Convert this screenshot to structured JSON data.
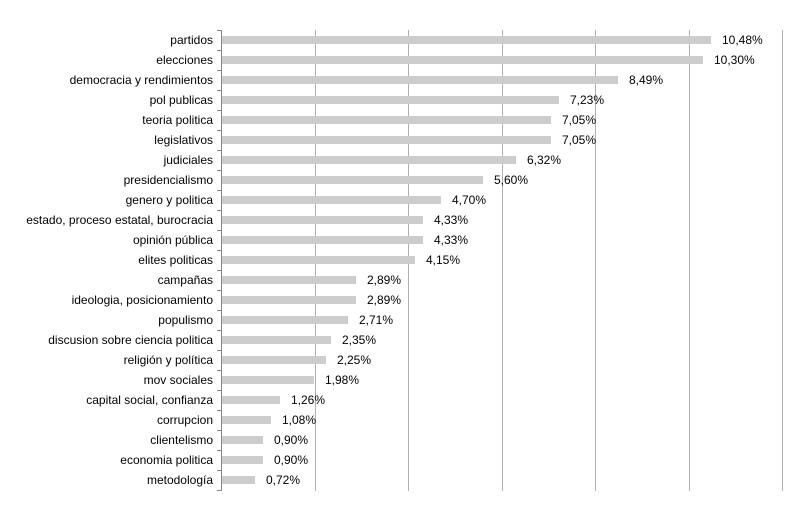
{
  "chart_data": {
    "type": "bar",
    "orientation": "horizontal",
    "title": "",
    "xlabel": "",
    "ylabel": "",
    "xlim": [
      0,
      12
    ],
    "gridline_step_pct": 2,
    "grid": true,
    "legend_position": "none",
    "x_tick_labels_visible": false,
    "categories": [
      "partidos",
      "elecciones",
      "democracia y rendimientos",
      "pol publicas",
      "teoria politica",
      "legislativos",
      "judiciales",
      "presidencialismo",
      "genero y politica",
      "estado, proceso estatal, burocracia",
      "opinión pública",
      "elites politicas",
      "campañas",
      "ideologia, posicionamiento",
      "populismo",
      "discusion sobre ciencia politica",
      "religión y política",
      "mov sociales",
      "capital social, confianza",
      "corrupcion",
      "clientelismo",
      "economia politica",
      "metodología"
    ],
    "values": [
      10.48,
      10.3,
      8.49,
      7.23,
      7.05,
      7.05,
      6.32,
      5.6,
      4.7,
      4.33,
      4.33,
      4.15,
      2.89,
      2.89,
      2.71,
      2.35,
      2.25,
      1.98,
      1.26,
      1.08,
      0.9,
      0.9,
      0.72
    ],
    "value_labels": [
      "10,48%",
      "10,30%",
      "8,49%",
      "7,23%",
      "7,05%",
      "7,05%",
      "6,32%",
      "5,60%",
      "4,70%",
      "4,33%",
      "4,33%",
      "4,15%",
      "2,89%",
      "2,89%",
      "2,71%",
      "2,35%",
      "2,25%",
      "1,98%",
      "1,26%",
      "1,08%",
      "0,90%",
      "0,90%",
      "0,72%"
    ],
    "colors": {
      "bar": "#cdcdcd",
      "gridline": "#b0b0b0",
      "axis": "#858585",
      "label_text": "#000000",
      "background": "#ffffff"
    }
  }
}
